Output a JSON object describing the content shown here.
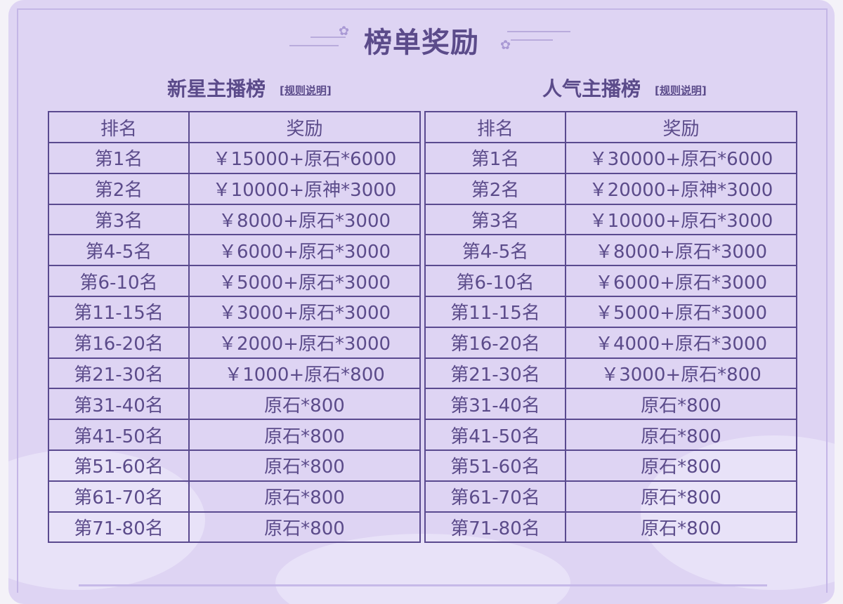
{
  "title": "榜单奖励",
  "tables": [
    {
      "name": "新星主播榜",
      "rule_link": "[规则说明]",
      "headers": [
        "排名",
        "奖励"
      ],
      "rows": [
        [
          "第1名",
          "￥15000+原石*6000"
        ],
        [
          "第2名",
          "￥10000+原神*3000"
        ],
        [
          "第3名",
          "￥8000+原石*3000"
        ],
        [
          "第4-5名",
          "￥6000+原石*3000"
        ],
        [
          "第6-10名",
          "￥5000+原石*3000"
        ],
        [
          "第11-15名",
          "￥3000+原石*3000"
        ],
        [
          "第16-20名",
          "￥2000+原石*3000"
        ],
        [
          "第21-30名",
          "￥1000+原石*800"
        ],
        [
          "第31-40名",
          "原石*800"
        ],
        [
          "第41-50名",
          "原石*800"
        ],
        [
          "第51-60名",
          "原石*800"
        ],
        [
          "第61-70名",
          "原石*800"
        ],
        [
          "第71-80名",
          "原石*800"
        ]
      ]
    },
    {
      "name": "人气主播榜",
      "rule_link": "[规则说明]",
      "headers": [
        "排名",
        "奖励"
      ],
      "rows": [
        [
          "第1名",
          "￥30000+原石*6000"
        ],
        [
          "第2名",
          "￥20000+原神*3000"
        ],
        [
          "第3名",
          "￥10000+原石*3000"
        ],
        [
          "第4-5名",
          "￥8000+原石*3000"
        ],
        [
          "第6-10名",
          "￥6000+原石*3000"
        ],
        [
          "第11-15名",
          "￥5000+原石*3000"
        ],
        [
          "第16-20名",
          "￥4000+原石*3000"
        ],
        [
          "第21-30名",
          "￥3000+原石*800"
        ],
        [
          "第31-40名",
          "原石*800"
        ],
        [
          "第41-50名",
          "原石*800"
        ],
        [
          "第51-60名",
          "原石*800"
        ],
        [
          "第61-70名",
          "原石*800"
        ],
        [
          "第71-80名",
          "原石*800"
        ]
      ]
    }
  ]
}
